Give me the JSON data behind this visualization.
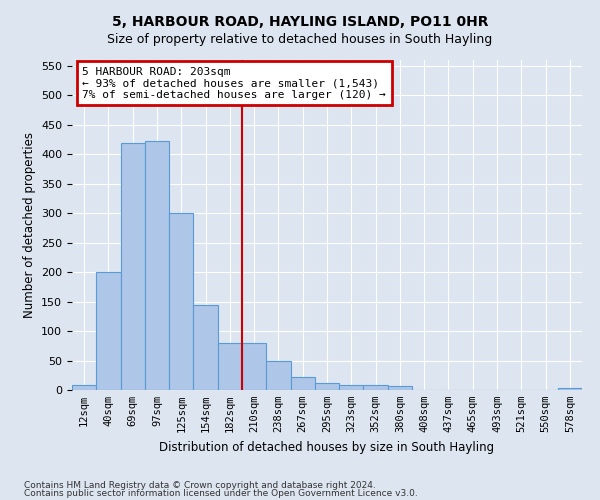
{
  "title": "5, HARBOUR ROAD, HAYLING ISLAND, PO11 0HR",
  "subtitle": "Size of property relative to detached houses in South Hayling",
  "xlabel": "Distribution of detached houses by size in South Hayling",
  "ylabel": "Number of detached properties",
  "footnote1": "Contains HM Land Registry data © Crown copyright and database right 2024.",
  "footnote2": "Contains public sector information licensed under the Open Government Licence v3.0.",
  "bar_labels": [
    "12sqm",
    "40sqm",
    "69sqm",
    "97sqm",
    "125sqm",
    "154sqm",
    "182sqm",
    "210sqm",
    "238sqm",
    "267sqm",
    "295sqm",
    "323sqm",
    "352sqm",
    "380sqm",
    "408sqm",
    "437sqm",
    "465sqm",
    "493sqm",
    "521sqm",
    "550sqm",
    "578sqm"
  ],
  "bar_values": [
    8,
    200,
    420,
    422,
    300,
    145,
    80,
    80,
    50,
    22,
    12,
    9,
    8,
    6,
    0,
    0,
    0,
    0,
    0,
    0,
    3
  ],
  "bar_color": "#aec6e8",
  "bar_edge_color": "#5b9bd5",
  "property_label": "5 HARBOUR ROAD: 203sqm",
  "annotation_line1": "← 93% of detached houses are smaller (1,543)",
  "annotation_line2": "7% of semi-detached houses are larger (120) →",
  "vline_color": "#cc0000",
  "annotation_box_edgecolor": "#cc0000",
  "ylim": [
    0,
    560
  ],
  "yticks": [
    0,
    50,
    100,
    150,
    200,
    250,
    300,
    350,
    400,
    450,
    500,
    550
  ],
  "background_color": "#dde5f0",
  "axes_background": "#dde5f0",
  "grid_color": "#ffffff",
  "title_fontsize": 10,
  "subtitle_fontsize": 9,
  "vline_x_index": 7
}
